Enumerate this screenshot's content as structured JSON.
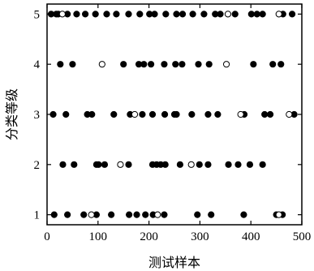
{
  "chart_data": {
    "type": "scatter",
    "xlabel": "测试样本",
    "ylabel": "分类等级",
    "xlim": [
      0,
      500
    ],
    "ylim": [
      0.8,
      5.2
    ],
    "xticks": [
      0,
      100,
      200,
      300,
      400,
      500
    ],
    "yticks": [
      1,
      2,
      3,
      4,
      5
    ],
    "marker_colors": {
      "filled": "#000000",
      "open": "#ffffff"
    },
    "series": [
      {
        "marker": "filled",
        "points": [
          [
            8,
            5
          ],
          [
            18,
            5
          ],
          [
            22,
            5
          ],
          [
            40,
            5
          ],
          [
            58,
            5
          ],
          [
            75,
            5
          ],
          [
            95,
            5
          ],
          [
            117,
            5
          ],
          [
            136,
            5
          ],
          [
            160,
            5
          ],
          [
            182,
            5
          ],
          [
            201,
            5
          ],
          [
            211,
            5
          ],
          [
            233,
            5
          ],
          [
            254,
            5
          ],
          [
            266,
            5
          ],
          [
            286,
            5
          ],
          [
            308,
            5
          ],
          [
            330,
            5
          ],
          [
            340,
            5
          ],
          [
            369,
            5
          ],
          [
            401,
            5
          ],
          [
            412,
            5
          ],
          [
            423,
            5
          ],
          [
            463,
            5
          ],
          [
            481,
            5
          ],
          [
            26,
            4
          ],
          [
            50,
            4
          ],
          [
            150,
            4
          ],
          [
            180,
            4
          ],
          [
            190,
            4
          ],
          [
            204,
            4
          ],
          [
            230,
            4
          ],
          [
            252,
            4
          ],
          [
            265,
            4
          ],
          [
            297,
            4
          ],
          [
            318,
            4
          ],
          [
            405,
            4
          ],
          [
            443,
            4
          ],
          [
            459,
            4
          ],
          [
            12,
            3
          ],
          [
            37,
            3
          ],
          [
            79,
            3
          ],
          [
            88,
            3
          ],
          [
            131,
            3
          ],
          [
            163,
            3
          ],
          [
            187,
            3
          ],
          [
            207,
            3
          ],
          [
            231,
            3
          ],
          [
            250,
            3
          ],
          [
            254,
            3
          ],
          [
            284,
            3
          ],
          [
            316,
            3
          ],
          [
            335,
            3
          ],
          [
            387,
            3
          ],
          [
            427,
            3
          ],
          [
            438,
            3
          ],
          [
            485,
            3
          ],
          [
            31,
            2
          ],
          [
            53,
            2
          ],
          [
            97,
            2
          ],
          [
            101,
            2
          ],
          [
            113,
            2
          ],
          [
            160,
            2
          ],
          [
            207,
            2
          ],
          [
            215,
            2
          ],
          [
            223,
            2
          ],
          [
            232,
            2
          ],
          [
            261,
            2
          ],
          [
            299,
            2
          ],
          [
            316,
            2
          ],
          [
            356,
            2
          ],
          [
            375,
            2
          ],
          [
            398,
            2
          ],
          [
            423,
            2
          ],
          [
            14,
            1
          ],
          [
            40,
            1
          ],
          [
            72,
            1
          ],
          [
            97,
            1
          ],
          [
            126,
            1
          ],
          [
            161,
            1
          ],
          [
            176,
            1
          ],
          [
            193,
            1
          ],
          [
            208,
            1
          ],
          [
            230,
            1
          ],
          [
            295,
            1
          ],
          [
            322,
            1
          ],
          [
            386,
            1
          ],
          [
            450,
            1
          ],
          [
            462,
            1
          ]
        ]
      },
      {
        "marker": "open",
        "points": [
          [
            30,
            5
          ],
          [
            355,
            5
          ],
          [
            455,
            5
          ],
          [
            108,
            4
          ],
          [
            352,
            4
          ],
          [
            172,
            3
          ],
          [
            380,
            3
          ],
          [
            475,
            3
          ],
          [
            144,
            2
          ],
          [
            283,
            2
          ],
          [
            87,
            1
          ],
          [
            217,
            1
          ],
          [
            455,
            1
          ]
        ]
      }
    ]
  }
}
